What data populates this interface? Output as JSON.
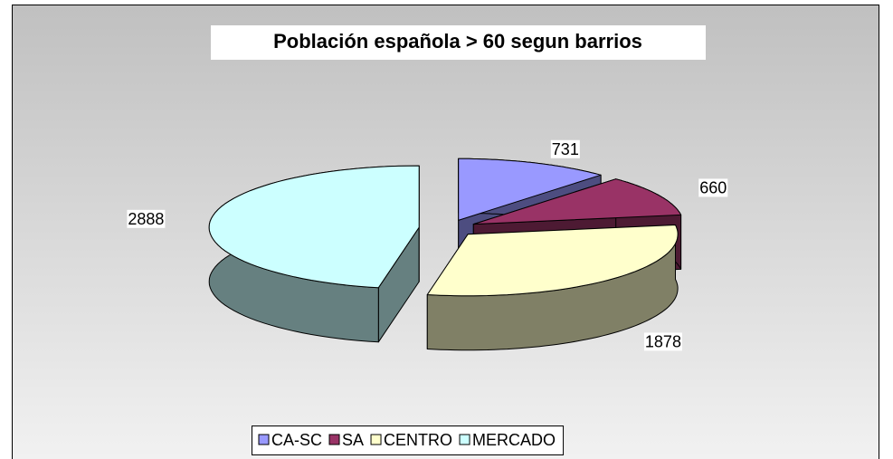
{
  "chart_data": {
    "type": "pie3d",
    "title": "Población española > 60 segun barrios",
    "categories": [
      "CA-SC",
      "SA",
      "CENTRO",
      "MERCADO"
    ],
    "values": [
      731,
      660,
      1878,
      2888
    ],
    "colors": [
      "#9999ff",
      "#993366",
      "#ffffcc",
      "#ccffff"
    ],
    "legend": "bottom"
  }
}
